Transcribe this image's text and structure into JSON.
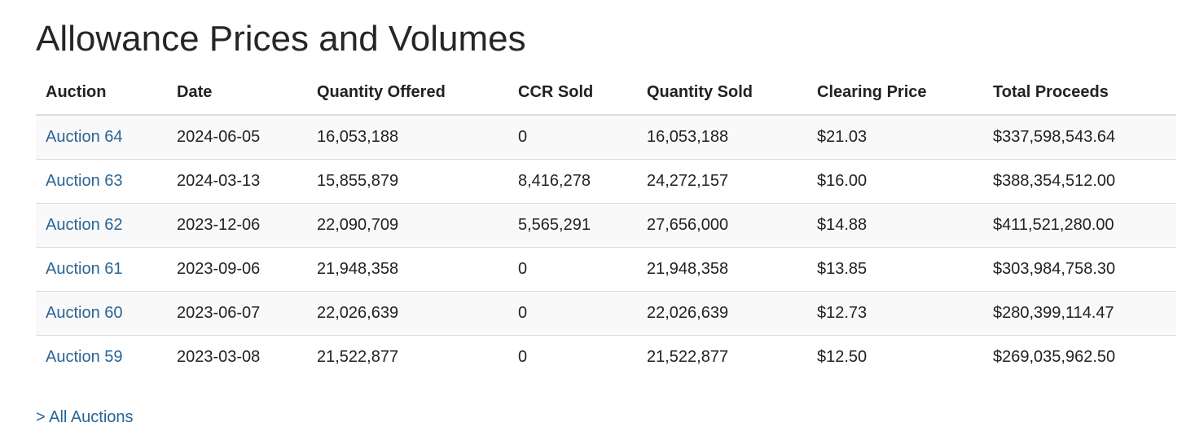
{
  "title": "Allowance Prices and Volumes",
  "columns": [
    "Auction",
    "Date",
    "Quantity Offered",
    "CCR Sold",
    "Quantity Sold",
    "Clearing Price",
    "Total Proceeds"
  ],
  "rows": [
    {
      "auction": "Auction 64",
      "date": "2024-06-05",
      "quantity_offered": "16,053,188",
      "ccr_sold": "0",
      "quantity_sold": "16,053,188",
      "clearing_price": "$21.03",
      "total_proceeds": "$337,598,543.64"
    },
    {
      "auction": "Auction 63",
      "date": "2024-03-13",
      "quantity_offered": "15,855,879",
      "ccr_sold": "8,416,278",
      "quantity_sold": "24,272,157",
      "clearing_price": "$16.00",
      "total_proceeds": "$388,354,512.00"
    },
    {
      "auction": "Auction 62",
      "date": "2023-12-06",
      "quantity_offered": "22,090,709",
      "ccr_sold": "5,565,291",
      "quantity_sold": "27,656,000",
      "clearing_price": "$14.88",
      "total_proceeds": "$411,521,280.00"
    },
    {
      "auction": "Auction 61",
      "date": "2023-09-06",
      "quantity_offered": "21,948,358",
      "ccr_sold": "0",
      "quantity_sold": "21,948,358",
      "clearing_price": "$13.85",
      "total_proceeds": "$303,984,758.30"
    },
    {
      "auction": "Auction 60",
      "date": "2023-06-07",
      "quantity_offered": "22,026,639",
      "ccr_sold": "0",
      "quantity_sold": "22,026,639",
      "clearing_price": "$12.73",
      "total_proceeds": "$280,399,114.47"
    },
    {
      "auction": "Auction 59",
      "date": "2023-03-08",
      "quantity_offered": "21,522,877",
      "ccr_sold": "0",
      "quantity_sold": "21,522,877",
      "clearing_price": "$12.50",
      "total_proceeds": "$269,035,962.50"
    }
  ],
  "all_auctions_link": "> All Auctions",
  "colors": {
    "link": "#2a6496",
    "text": "#222222",
    "stripe": "#f9f9f9",
    "border": "#dddddd"
  }
}
